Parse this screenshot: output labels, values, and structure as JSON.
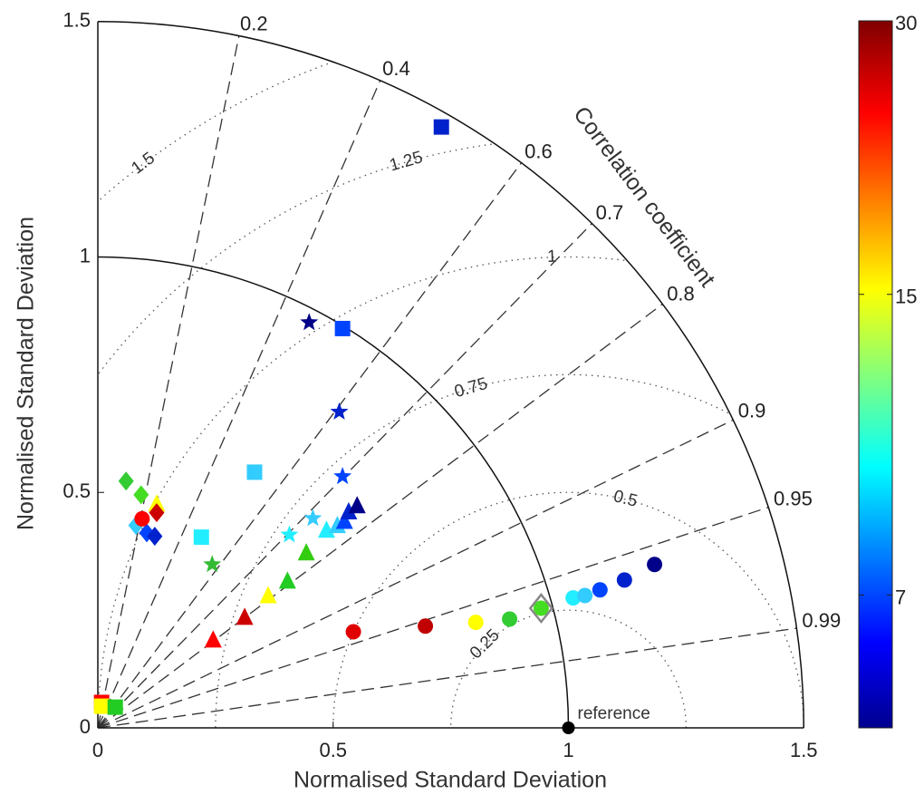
{
  "chart_data": {
    "type": "taylor",
    "x_label": "Normalised Standard Deviation",
    "y_label": "Normalised Standard Deviation",
    "xlim": [
      0,
      1.5
    ],
    "xticks": [
      0,
      0.5,
      1,
      1.5
    ],
    "ylim": [
      0,
      1.5
    ],
    "yticks": [
      0,
      0.5,
      1,
      1.5
    ],
    "std_arcs": [
      1,
      1.5
    ],
    "correlation_title": "Correlation coefficient",
    "correlation_ticks": [
      0.2,
      0.4,
      0.6,
      0.7,
      0.8,
      0.9,
      0.95,
      0.99
    ],
    "rms_ticks": [
      0.25,
      0.5,
      0.75,
      1,
      1.25,
      1.5
    ],
    "reference": {
      "label": "reference",
      "x": 1,
      "y": 0
    },
    "points": [
      {
        "x": 0.543,
        "y": 0.204,
        "marker": "circle",
        "color": "#e00000"
      },
      {
        "x": 0.696,
        "y": 0.216,
        "marker": "circle",
        "color": "#c00000"
      },
      {
        "x": 0.803,
        "y": 0.224,
        "marker": "circle",
        "color": "#ffff00"
      },
      {
        "x": 0.875,
        "y": 0.231,
        "marker": "circle",
        "color": "#33cc33"
      },
      {
        "x": 0.942,
        "y": 0.254,
        "marker": "circle",
        "color": "#44dd22"
      },
      {
        "x": 0.942,
        "y": 0.254,
        "marker": "open-diamond",
        "color": "#888888"
      },
      {
        "x": 1.01,
        "y": 0.276,
        "marker": "circle",
        "color": "#22eeff"
      },
      {
        "x": 1.035,
        "y": 0.281,
        "marker": "circle",
        "color": "#33ccff"
      },
      {
        "x": 1.067,
        "y": 0.293,
        "marker": "circle",
        "color": "#0044ff"
      },
      {
        "x": 1.119,
        "y": 0.314,
        "marker": "circle",
        "color": "#0022cc"
      },
      {
        "x": 1.183,
        "y": 0.347,
        "marker": "circle",
        "color": "#000088"
      },
      {
        "x": 0.245,
        "y": 0.187,
        "marker": "triangle",
        "color": "#ff0000"
      },
      {
        "x": 0.312,
        "y": 0.235,
        "marker": "triangle",
        "color": "#cc0000"
      },
      {
        "x": 0.362,
        "y": 0.281,
        "marker": "triangle",
        "color": "#ffff00"
      },
      {
        "x": 0.403,
        "y": 0.312,
        "marker": "triangle",
        "color": "#22cc22"
      },
      {
        "x": 0.443,
        "y": 0.372,
        "marker": "triangle",
        "color": "#33cc11"
      },
      {
        "x": 0.486,
        "y": 0.42,
        "marker": "triangle",
        "color": "#22eeff"
      },
      {
        "x": 0.509,
        "y": 0.43,
        "marker": "triangle",
        "color": "#33ccff"
      },
      {
        "x": 0.524,
        "y": 0.439,
        "marker": "triangle",
        "color": "#0044ff"
      },
      {
        "x": 0.533,
        "y": 0.459,
        "marker": "triangle",
        "color": "#0022cc"
      },
      {
        "x": 0.551,
        "y": 0.472,
        "marker": "triangle",
        "color": "#000088"
      },
      {
        "x": 0.243,
        "y": 0.347,
        "marker": "star",
        "color": "#33bb33"
      },
      {
        "x": 0.407,
        "y": 0.41,
        "marker": "star",
        "color": "#22eeff"
      },
      {
        "x": 0.457,
        "y": 0.445,
        "marker": "star",
        "color": "#33ccff"
      },
      {
        "x": 0.52,
        "y": 0.534,
        "marker": "star",
        "color": "#0044ff"
      },
      {
        "x": 0.513,
        "y": 0.671,
        "marker": "star",
        "color": "#0022cc"
      },
      {
        "x": 0.449,
        "y": 0.861,
        "marker": "star",
        "color": "#000088"
      },
      {
        "x": 0.73,
        "y": 1.276,
        "marker": "square",
        "color": "#0022cc"
      },
      {
        "x": 0.52,
        "y": 0.848,
        "marker": "square",
        "color": "#0044ff"
      },
      {
        "x": 0.333,
        "y": 0.543,
        "marker": "square",
        "color": "#33ccff"
      },
      {
        "x": 0.22,
        "y": 0.405,
        "marker": "square",
        "color": "#22eeff"
      },
      {
        "x": 0.008,
        "y": 0.054,
        "marker": "square",
        "color": "#ff0000"
      },
      {
        "x": 0.008,
        "y": 0.046,
        "marker": "square",
        "color": "#ffff00"
      },
      {
        "x": 0.037,
        "y": 0.044,
        "marker": "square",
        "color": "#22cc22"
      },
      {
        "x": 0.06,
        "y": 0.524,
        "marker": "diamond",
        "color": "#33cc33"
      },
      {
        "x": 0.092,
        "y": 0.495,
        "marker": "diamond",
        "color": "#44dd22"
      },
      {
        "x": 0.081,
        "y": 0.43,
        "marker": "diamond",
        "color": "#33ccff"
      },
      {
        "x": 0.104,
        "y": 0.414,
        "marker": "diamond",
        "color": "#0044ff"
      },
      {
        "x": 0.121,
        "y": 0.407,
        "marker": "diamond",
        "color": "#0022cc"
      },
      {
        "x": 0.094,
        "y": 0.444,
        "marker": "circle",
        "color": "#ff0000"
      },
      {
        "x": 0.125,
        "y": 0.476,
        "marker": "triangle",
        "color": "#ffff00"
      },
      {
        "x": 0.125,
        "y": 0.457,
        "marker": "diamond",
        "color": "#cc0000"
      }
    ],
    "colorbar": {
      "clim": [
        5,
        30
      ],
      "log": true,
      "ticks": [
        7,
        15,
        30
      ]
    }
  }
}
